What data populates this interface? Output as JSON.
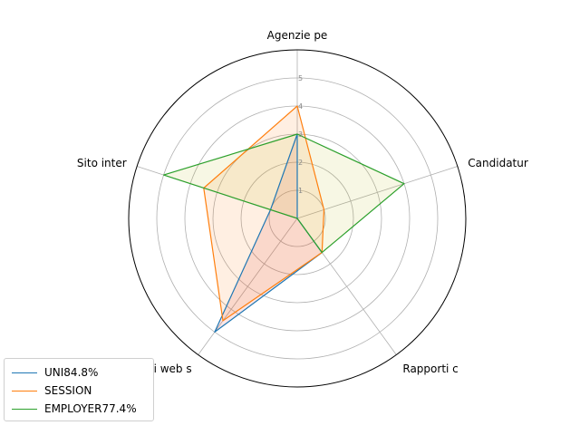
{
  "chart_data": {
    "type": "radar",
    "categories": [
      "Agenzie pe",
      "Candidatur",
      "Rapporti c",
      "Siti web s",
      "Sito inter"
    ],
    "rlim": [
      0,
      6
    ],
    "rticks": [
      1,
      2,
      3,
      4,
      5
    ],
    "rtick_labels": [
      "1",
      "2",
      "3",
      "4",
      "5"
    ],
    "grid": true,
    "legend_position": "lower-left",
    "series": [
      {
        "name": "UNI84.8%",
        "values": [
          3,
          0,
          1.5,
          5,
          1
        ],
        "color": "#1f77b4",
        "fill": "#d62728"
      },
      {
        "name": "SESSION",
        "values": [
          4,
          1,
          1.5,
          4.5,
          3.5
        ],
        "color": "#ff7f0e",
        "fill": "#ff7f0e"
      },
      {
        "name": "EMPLOYER77.4%",
        "values": [
          3,
          4,
          1.5,
          0,
          5
        ],
        "color": "#2ca02c",
        "fill": "#bcbd22"
      }
    ]
  }
}
